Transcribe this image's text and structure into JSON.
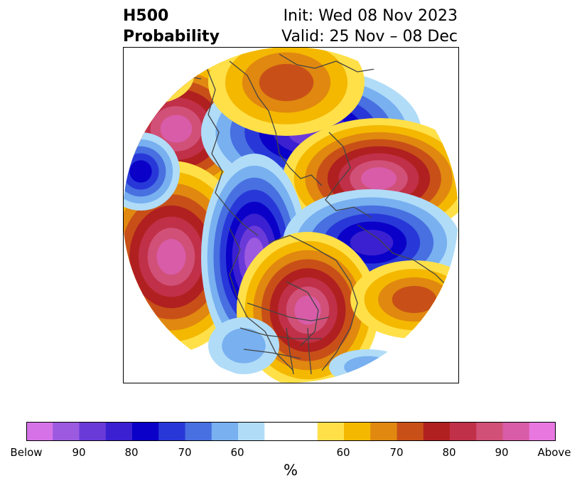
{
  "header": {
    "title_line1": "H500",
    "title_line2": "Probability",
    "init_text": "Init: Wed 08 Nov 2023",
    "valid_text": "Valid: 25 Nov – 08 Dec"
  },
  "colorbar": {
    "colors": [
      "#d672e8",
      "#9c5ae0",
      "#6a3ad8",
      "#3a20d0",
      "#0a00c8",
      "#2838d8",
      "#4870e0",
      "#78b0f0",
      "#b0dcf8",
      "#ffffff",
      "#ffe048",
      "#f4b800",
      "#e08810",
      "#c85018",
      "#b02020",
      "#c03048",
      "#d05078",
      "#d85ca8",
      "#e878e0"
    ],
    "tick_labels": [
      "Below",
      "90",
      "80",
      "70",
      "60",
      "60",
      "70",
      "80",
      "90",
      "Above"
    ],
    "unit_label": "%"
  },
  "map": {
    "below_levels": [
      "#b0dcf8",
      "#78b0f0",
      "#4870e0",
      "#2838d8",
      "#0a00c8",
      "#3a20d0",
      "#6a3ad8",
      "#9c5ae0"
    ],
    "above_levels": [
      "#ffe048",
      "#f4b800",
      "#e08810",
      "#c85018",
      "#b02020",
      "#c03048",
      "#d05078",
      "#d85ca8"
    ],
    "anomalies": [
      {
        "sign": "above",
        "strength": 8
      },
      {
        "sign": "below",
        "strength": 7
      },
      {
        "sign": "above",
        "strength": 8
      },
      {
        "sign": "above",
        "strength": 9
      },
      {
        "sign": "below",
        "strength": 9
      },
      {
        "sign": "below",
        "strength": 6
      },
      {
        "sign": "above",
        "strength": 8
      },
      {
        "sign": "above",
        "strength": 4
      },
      {
        "sign": "below",
        "strength": 5
      },
      {
        "sign": "above",
        "strength": 4
      },
      {
        "sign": "below",
        "strength": 2
      },
      {
        "sign": "below",
        "strength": 2
      },
      {
        "sign": "above",
        "strength": 2
      }
    ]
  }
}
